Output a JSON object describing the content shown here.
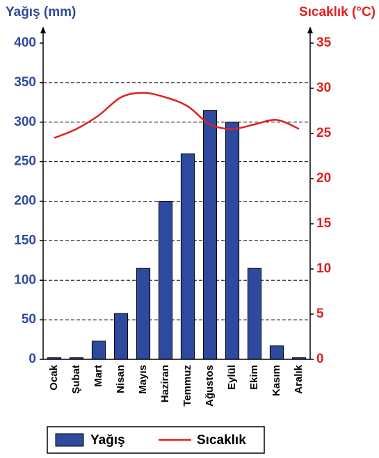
{
  "chart_data": {
    "type": "bar",
    "y_label": "Yağış (mm)",
    "y2_label": "Sıcaklık (°C)",
    "categories": [
      "Ocak",
      "Şubat",
      "Mart",
      "Nisan",
      "Mayıs",
      "Haziran",
      "Temmuz",
      "Ağustos",
      "Eylül",
      "Ekim",
      "Kasım",
      "Aralık"
    ],
    "series": [
      {
        "name": "Yağış",
        "type": "bar",
        "color": "#2e4a9e",
        "values": [
          2,
          2,
          23,
          58,
          115,
          200,
          260,
          315,
          300,
          115,
          17,
          2
        ]
      },
      {
        "name": "Sıcaklık",
        "type": "line",
        "axis": "y2",
        "color": "#e41e1e",
        "values": [
          24.5,
          25.5,
          27,
          29,
          29.5,
          29,
          28,
          26,
          25.5,
          26,
          26.5,
          25.5
        ]
      }
    ],
    "ylim": [
      0,
      400
    ],
    "yticks": [
      0,
      50,
      100,
      150,
      200,
      250,
      300,
      350,
      400
    ],
    "y2lim": [
      0,
      35
    ],
    "y2ticks": [
      0,
      5,
      10,
      15,
      20,
      25,
      30,
      35
    ],
    "grid": true
  }
}
